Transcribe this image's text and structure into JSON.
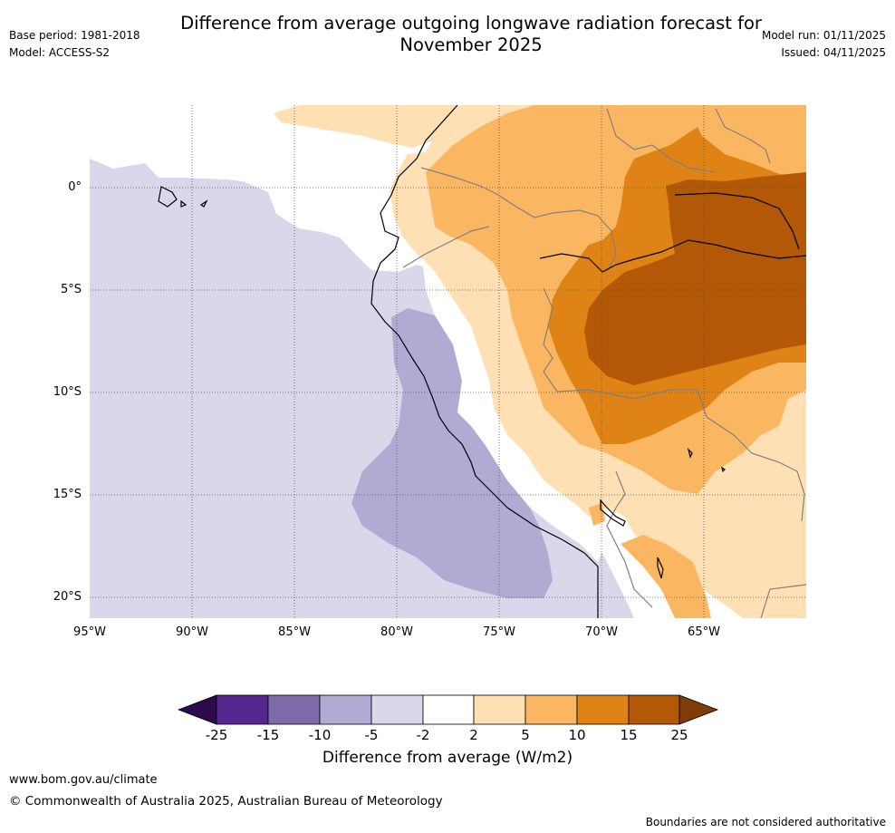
{
  "header": {
    "title_line1": "Difference from average outgoing longwave radiation forecast for",
    "title_line2": "November 2025",
    "base_period": "Base period: 1981-2018",
    "model": "Model: ACCESS-S2",
    "model_run": "Model run: 01/11/2025",
    "issued": "Issued: 04/11/2025"
  },
  "map": {
    "region": "Western South America / East Pacific",
    "lat_labels": [
      "0°",
      "5°S",
      "10°S",
      "15°S",
      "20°S"
    ],
    "lon_labels": [
      "95°W",
      "90°W",
      "85°W",
      "80°W",
      "75°W",
      "70°W",
      "65°W"
    ],
    "colors": {
      "lt_m25": "#2d0a4e",
      "m25_m15": "#54278f",
      "m15_m10": "#7d6ba9",
      "m10_m5": "#b1aad3",
      "m5_m2": "#d8d8ea",
      "m2_2": "#ffffff",
      "2_5": "#fee0b4",
      "5_10": "#fbb661",
      "10_15": "#e08316",
      "15_25": "#b35806",
      "gt_25": "#7f3b08"
    }
  },
  "colorbar": {
    "labels": [
      "-25",
      "-15",
      "-10",
      "-5",
      "-2",
      "2",
      "5",
      "10",
      "15",
      "25"
    ],
    "title": "Difference from average (W/m2)"
  },
  "footer": {
    "url": "www.bom.gov.au/climate",
    "copyright": "© Commonwealth of Australia 2025, Australian Bureau of Meteorology",
    "disclaimer": "Boundaries are not considered authoritative"
  }
}
